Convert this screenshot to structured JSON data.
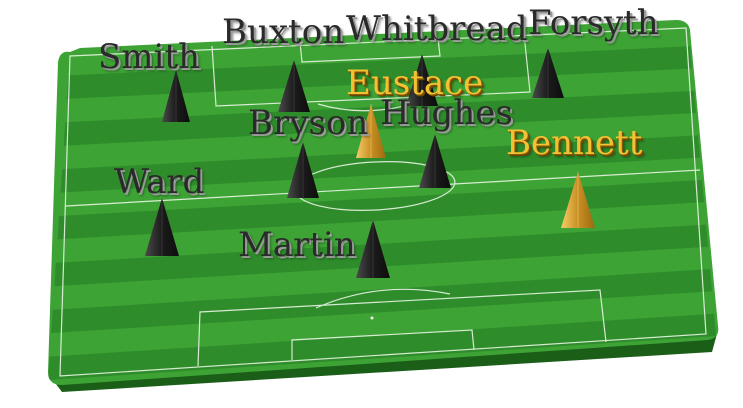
{
  "players": [
    {
      "name": "Smith",
      "team": "dark"
    },
    {
      "name": "Buxton",
      "team": "dark"
    },
    {
      "name": "Whitbread",
      "team": "dark"
    },
    {
      "name": "Forsyth",
      "team": "dark"
    },
    {
      "name": "Eustace",
      "team": "gold"
    },
    {
      "name": "Bryson",
      "team": "dark"
    },
    {
      "name": "Hughes",
      "team": "dark"
    },
    {
      "name": "Bennett",
      "team": "gold"
    },
    {
      "name": "Ward",
      "team": "dark"
    },
    {
      "name": "Martin",
      "team": "dark"
    }
  ],
  "colors": {
    "pitch_light": "#3da335",
    "pitch_dark": "#2f8c2b",
    "pitch_edge": "#1f6a1c",
    "line": "#e8f5e4",
    "dark_team": "#2a2a2a",
    "gold_team": "#d9a22c"
  }
}
